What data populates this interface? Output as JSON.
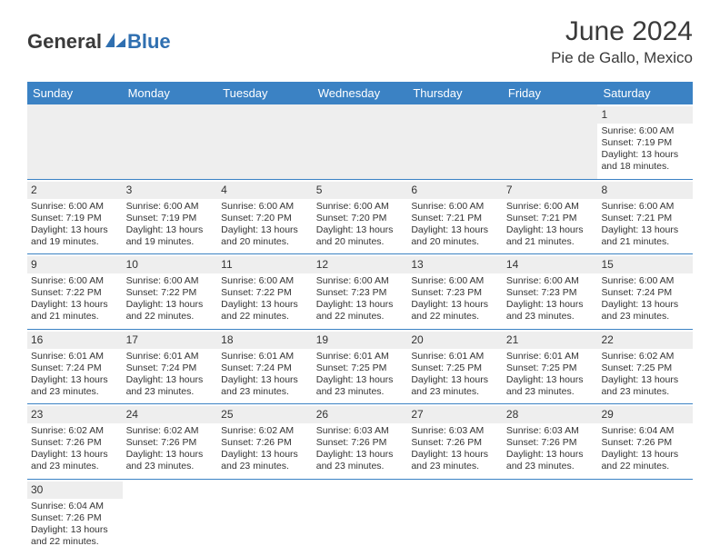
{
  "logo": {
    "part1": "General",
    "part2": "Blue"
  },
  "title": "June 2024",
  "location": "Pie de Gallo, Mexico",
  "colors": {
    "header_bg": "#3b82c4",
    "header_text": "#ffffff",
    "divider": "#3b82c4",
    "daynum_bg": "#eeeeee",
    "text": "#333333",
    "logo_blue": "#2f6fb0"
  },
  "weekdays": [
    "Sunday",
    "Monday",
    "Tuesday",
    "Wednesday",
    "Thursday",
    "Friday",
    "Saturday"
  ],
  "weeks": [
    [
      null,
      null,
      null,
      null,
      null,
      null,
      {
        "n": "1",
        "sr": "Sunrise: 6:00 AM",
        "ss": "Sunset: 7:19 PM",
        "d1": "Daylight: 13 hours",
        "d2": "and 18 minutes."
      }
    ],
    [
      {
        "n": "2",
        "sr": "Sunrise: 6:00 AM",
        "ss": "Sunset: 7:19 PM",
        "d1": "Daylight: 13 hours",
        "d2": "and 19 minutes."
      },
      {
        "n": "3",
        "sr": "Sunrise: 6:00 AM",
        "ss": "Sunset: 7:19 PM",
        "d1": "Daylight: 13 hours",
        "d2": "and 19 minutes."
      },
      {
        "n": "4",
        "sr": "Sunrise: 6:00 AM",
        "ss": "Sunset: 7:20 PM",
        "d1": "Daylight: 13 hours",
        "d2": "and 20 minutes."
      },
      {
        "n": "5",
        "sr": "Sunrise: 6:00 AM",
        "ss": "Sunset: 7:20 PM",
        "d1": "Daylight: 13 hours",
        "d2": "and 20 minutes."
      },
      {
        "n": "6",
        "sr": "Sunrise: 6:00 AM",
        "ss": "Sunset: 7:21 PM",
        "d1": "Daylight: 13 hours",
        "d2": "and 20 minutes."
      },
      {
        "n": "7",
        "sr": "Sunrise: 6:00 AM",
        "ss": "Sunset: 7:21 PM",
        "d1": "Daylight: 13 hours",
        "d2": "and 21 minutes."
      },
      {
        "n": "8",
        "sr": "Sunrise: 6:00 AM",
        "ss": "Sunset: 7:21 PM",
        "d1": "Daylight: 13 hours",
        "d2": "and 21 minutes."
      }
    ],
    [
      {
        "n": "9",
        "sr": "Sunrise: 6:00 AM",
        "ss": "Sunset: 7:22 PM",
        "d1": "Daylight: 13 hours",
        "d2": "and 21 minutes."
      },
      {
        "n": "10",
        "sr": "Sunrise: 6:00 AM",
        "ss": "Sunset: 7:22 PM",
        "d1": "Daylight: 13 hours",
        "d2": "and 22 minutes."
      },
      {
        "n": "11",
        "sr": "Sunrise: 6:00 AM",
        "ss": "Sunset: 7:22 PM",
        "d1": "Daylight: 13 hours",
        "d2": "and 22 minutes."
      },
      {
        "n": "12",
        "sr": "Sunrise: 6:00 AM",
        "ss": "Sunset: 7:23 PM",
        "d1": "Daylight: 13 hours",
        "d2": "and 22 minutes."
      },
      {
        "n": "13",
        "sr": "Sunrise: 6:00 AM",
        "ss": "Sunset: 7:23 PM",
        "d1": "Daylight: 13 hours",
        "d2": "and 22 minutes."
      },
      {
        "n": "14",
        "sr": "Sunrise: 6:00 AM",
        "ss": "Sunset: 7:23 PM",
        "d1": "Daylight: 13 hours",
        "d2": "and 23 minutes."
      },
      {
        "n": "15",
        "sr": "Sunrise: 6:00 AM",
        "ss": "Sunset: 7:24 PM",
        "d1": "Daylight: 13 hours",
        "d2": "and 23 minutes."
      }
    ],
    [
      {
        "n": "16",
        "sr": "Sunrise: 6:01 AM",
        "ss": "Sunset: 7:24 PM",
        "d1": "Daylight: 13 hours",
        "d2": "and 23 minutes."
      },
      {
        "n": "17",
        "sr": "Sunrise: 6:01 AM",
        "ss": "Sunset: 7:24 PM",
        "d1": "Daylight: 13 hours",
        "d2": "and 23 minutes."
      },
      {
        "n": "18",
        "sr": "Sunrise: 6:01 AM",
        "ss": "Sunset: 7:24 PM",
        "d1": "Daylight: 13 hours",
        "d2": "and 23 minutes."
      },
      {
        "n": "19",
        "sr": "Sunrise: 6:01 AM",
        "ss": "Sunset: 7:25 PM",
        "d1": "Daylight: 13 hours",
        "d2": "and 23 minutes."
      },
      {
        "n": "20",
        "sr": "Sunrise: 6:01 AM",
        "ss": "Sunset: 7:25 PM",
        "d1": "Daylight: 13 hours",
        "d2": "and 23 minutes."
      },
      {
        "n": "21",
        "sr": "Sunrise: 6:01 AM",
        "ss": "Sunset: 7:25 PM",
        "d1": "Daylight: 13 hours",
        "d2": "and 23 minutes."
      },
      {
        "n": "22",
        "sr": "Sunrise: 6:02 AM",
        "ss": "Sunset: 7:25 PM",
        "d1": "Daylight: 13 hours",
        "d2": "and 23 minutes."
      }
    ],
    [
      {
        "n": "23",
        "sr": "Sunrise: 6:02 AM",
        "ss": "Sunset: 7:26 PM",
        "d1": "Daylight: 13 hours",
        "d2": "and 23 minutes."
      },
      {
        "n": "24",
        "sr": "Sunrise: 6:02 AM",
        "ss": "Sunset: 7:26 PM",
        "d1": "Daylight: 13 hours",
        "d2": "and 23 minutes."
      },
      {
        "n": "25",
        "sr": "Sunrise: 6:02 AM",
        "ss": "Sunset: 7:26 PM",
        "d1": "Daylight: 13 hours",
        "d2": "and 23 minutes."
      },
      {
        "n": "26",
        "sr": "Sunrise: 6:03 AM",
        "ss": "Sunset: 7:26 PM",
        "d1": "Daylight: 13 hours",
        "d2": "and 23 minutes."
      },
      {
        "n": "27",
        "sr": "Sunrise: 6:03 AM",
        "ss": "Sunset: 7:26 PM",
        "d1": "Daylight: 13 hours",
        "d2": "and 23 minutes."
      },
      {
        "n": "28",
        "sr": "Sunrise: 6:03 AM",
        "ss": "Sunset: 7:26 PM",
        "d1": "Daylight: 13 hours",
        "d2": "and 23 minutes."
      },
      {
        "n": "29",
        "sr": "Sunrise: 6:04 AM",
        "ss": "Sunset: 7:26 PM",
        "d1": "Daylight: 13 hours",
        "d2": "and 22 minutes."
      }
    ],
    [
      {
        "n": "30",
        "sr": "Sunrise: 6:04 AM",
        "ss": "Sunset: 7:26 PM",
        "d1": "Daylight: 13 hours",
        "d2": "and 22 minutes."
      },
      null,
      null,
      null,
      null,
      null,
      null
    ]
  ]
}
